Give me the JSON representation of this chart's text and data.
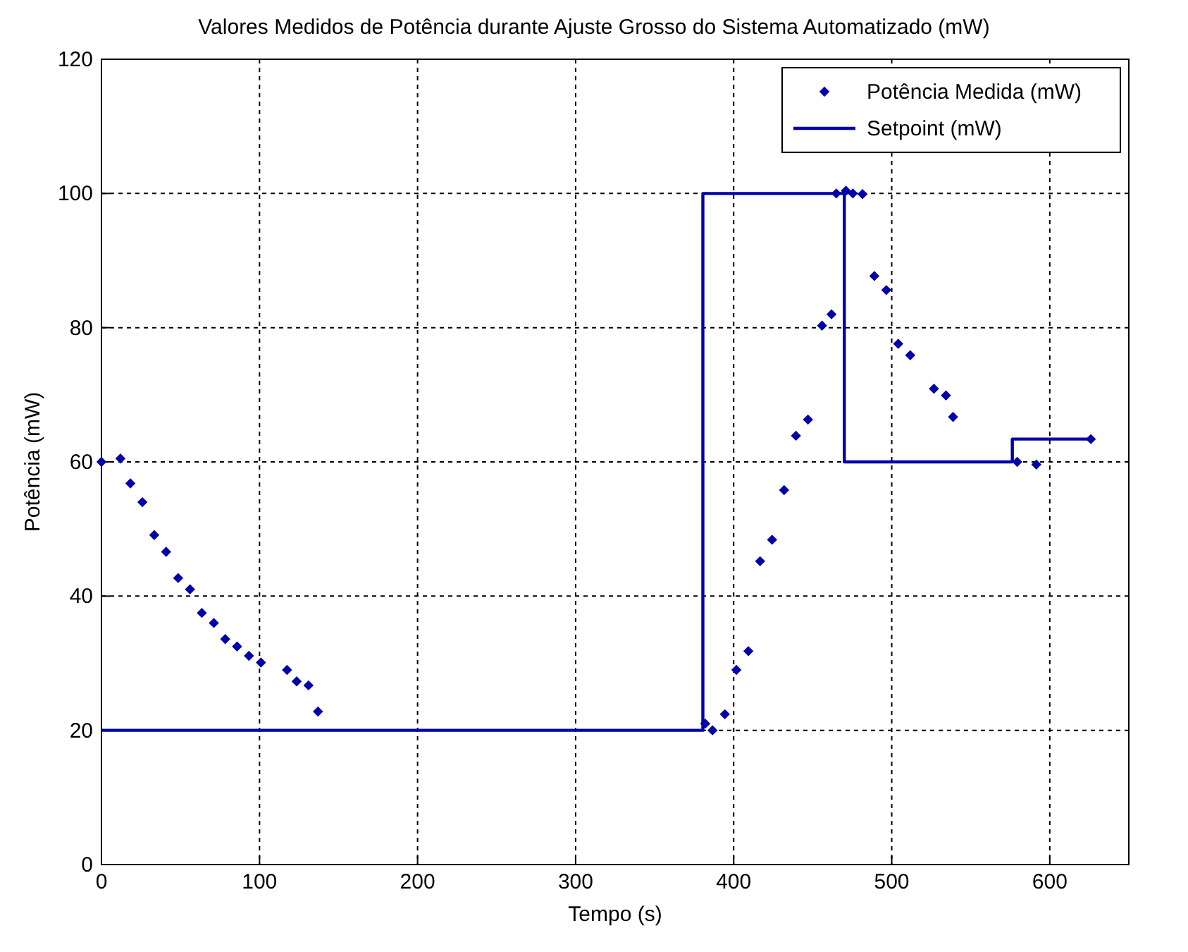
{
  "chart_data": {
    "type": "scatter",
    "title": "Valores Medidos de Potência durante Ajuste Grosso do Sistema Automatizado (mW)",
    "xlabel": "Tempo (s)",
    "ylabel": "Potência  (mW)",
    "xlim": [
      0,
      650
    ],
    "ylim": [
      0,
      120
    ],
    "xticks": [
      0,
      100,
      200,
      300,
      400,
      500,
      600
    ],
    "yticks": [
      0,
      20,
      40,
      60,
      80,
      100,
      120
    ],
    "grid": true,
    "legend": "top right",
    "series": [
      {
        "name": "Potência Medida (mW)",
        "marker": "diamond",
        "color": "#0000a8",
        "x": [
          0,
          12,
          18.3,
          25.9,
          33.4,
          40.9,
          48.5,
          56,
          63.5,
          71.1,
          78.3,
          85.8,
          93.3,
          100.9,
          117.4,
          123.5,
          131,
          137,
          382,
          386.6,
          394.4,
          401.7,
          409.3,
          416.7,
          424.3,
          431.9,
          439.4,
          447,
          455.9,
          461.9,
          464.9,
          471,
          475.4,
          481.5,
          489,
          496.6,
          504.1,
          511.7,
          526.7,
          534.3,
          538.8,
          579.4,
          591.5,
          626
        ],
        "values": [
          60,
          60.5,
          56.8,
          54,
          49.1,
          46.6,
          42.7,
          41,
          37.5,
          36,
          33.6,
          32.5,
          31.1,
          30.1,
          29,
          27.3,
          26.7,
          22.8,
          21,
          20,
          22.4,
          29,
          31.8,
          45.2,
          48.4,
          55.8,
          63.9,
          66.3,
          80.3,
          82,
          100,
          100.4,
          100,
          99.9,
          87.7,
          85.6,
          77.6,
          75.9,
          70.9,
          69.9,
          66.7,
          60,
          59.6,
          63.4
        ]
      },
      {
        "name": "Setpoint (mW)",
        "type": "step",
        "line_style": "solid",
        "color": "#0000a8",
        "x": [
          0,
          380.5,
          470,
          576.3,
          626
        ],
        "values": [
          20,
          100,
          60,
          63.4,
          63.4
        ]
      }
    ]
  }
}
